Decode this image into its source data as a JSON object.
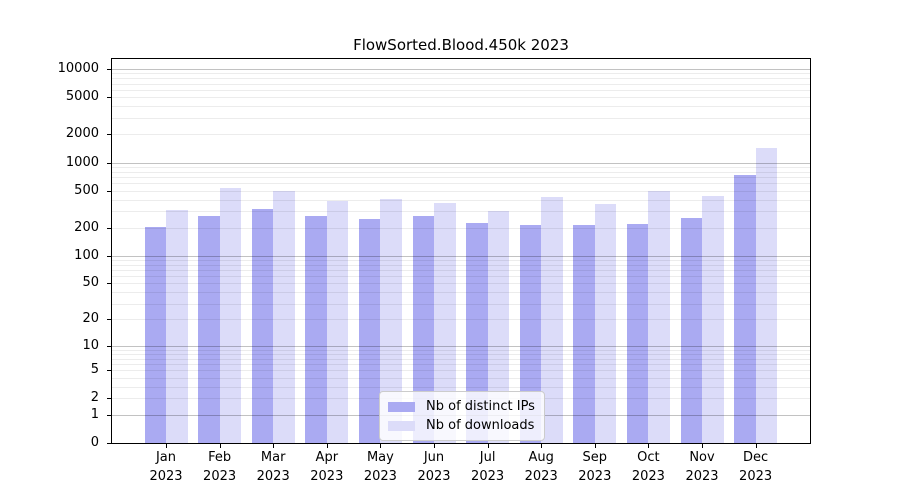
{
  "chart_data": {
    "type": "bar",
    "title": "FlowSorted.Blood.450k 2023",
    "categories": [
      "Jan",
      "Feb",
      "Mar",
      "Apr",
      "May",
      "Jun",
      "Jul",
      "Aug",
      "Sep",
      "Oct",
      "Nov",
      "Dec"
    ],
    "category_year": "2023",
    "series": [
      {
        "name": "Nb of distinct IPs",
        "color": "#aaaaf2",
        "values": [
          205,
          268,
          315,
          265,
          250,
          265,
          227,
          214,
          214,
          221,
          257,
          732
        ]
      },
      {
        "name": "Nb of downloads",
        "color": "#dcdcf9",
        "values": [
          310,
          530,
          500,
          390,
          410,
          365,
          305,
          428,
          357,
          497,
          440,
          1450
        ]
      }
    ],
    "yscale": "log1p",
    "ylim": [
      0,
      13000
    ],
    "ytick_values": [
      10000,
      5000,
      2000,
      1000,
      500,
      200,
      100,
      50,
      20,
      10,
      5,
      2,
      1,
      0
    ],
    "ytick_labels": [
      "10000",
      "5000",
      "2000",
      "1000",
      "500",
      "200",
      "100",
      "50",
      "20",
      "10",
      "5",
      "2",
      "1",
      "0"
    ],
    "grid": {
      "major_values": [
        1,
        10,
        100,
        1000,
        10000
      ],
      "minor_rule": "2-9 per decade",
      "major_color": "rgba(0,0,0,0.24)",
      "minor_color": "rgba(0,0,0,0.075)"
    },
    "legend": {
      "position": "lower center inside plot",
      "entries": [
        "Nb of distinct IPs",
        "Nb of downloads"
      ]
    },
    "xlabel": "",
    "ylabel": ""
  },
  "colors": {
    "background": "#ffffff",
    "axis": "#000000",
    "ips_bar": "#aaaaf2",
    "downloads_bar": "#dcdcf9",
    "legend_border": "#cccccc"
  }
}
